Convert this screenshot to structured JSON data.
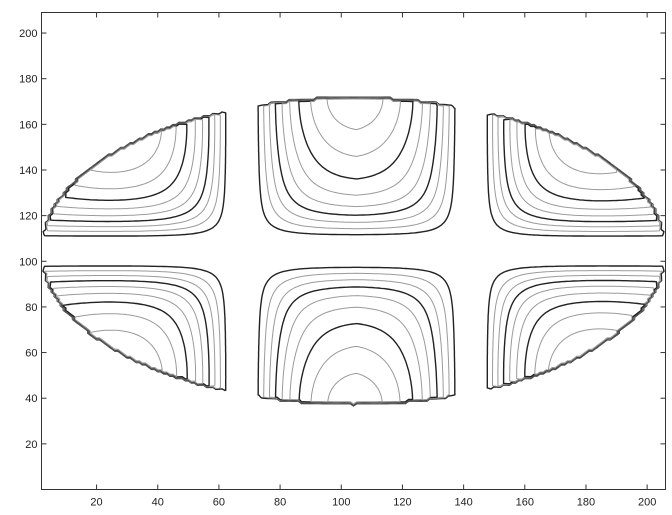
{
  "chart_data": {
    "type": "contour",
    "title": "",
    "xlabel": "",
    "ylabel": "",
    "xlim": [
      2,
      206
    ],
    "ylim": [
      0,
      209
    ],
    "x_ticks": [
      20,
      40,
      60,
      80,
      100,
      120,
      140,
      160,
      180,
      200
    ],
    "y_ticks": [
      20,
      40,
      60,
      80,
      100,
      120,
      140,
      160,
      180,
      200
    ],
    "grid": false,
    "domain": {
      "shape": "ellipse",
      "center": [
        104,
        104.5
      ],
      "semi_axes": [
        102,
        67
      ],
      "cut_horizontal": [
        100,
        109
      ],
      "cut_vertical": [
        [
          64,
          71
        ],
        [
          139,
          146
        ]
      ]
    },
    "lobes": [
      {
        "name": "upper-left",
        "x_range": [
          2,
          64
        ],
        "y_range": [
          109,
          165
        ],
        "peak": [
          27,
          158
        ]
      },
      {
        "name": "upper-middle",
        "x_range": [
          71,
          139
        ],
        "y_range": [
          109,
          171.5
        ],
        "peak": [
          104,
          171.5
        ]
      },
      {
        "name": "upper-right",
        "x_range": [
          146,
          206
        ],
        "y_range": [
          109,
          165
        ],
        "peak": [
          182,
          158
        ]
      },
      {
        "name": "lower-left",
        "x_range": [
          2,
          64
        ],
        "y_range": [
          37.5,
          100
        ],
        "peak": [
          27,
          50
        ]
      },
      {
        "name": "lower-middle",
        "x_range": [
          71,
          139
        ],
        "y_range": [
          37.5,
          100
        ],
        "peak": [
          104,
          37.5
        ]
      },
      {
        "name": "lower-right",
        "x_range": [
          146,
          206
        ],
        "y_range": [
          37.5,
          100
        ],
        "peak": [
          182,
          50
        ]
      }
    ],
    "contour_levels": 9,
    "colors": {
      "dark": "#222222",
      "light": "#9a9a9a",
      "frame": "#333333"
    }
  }
}
